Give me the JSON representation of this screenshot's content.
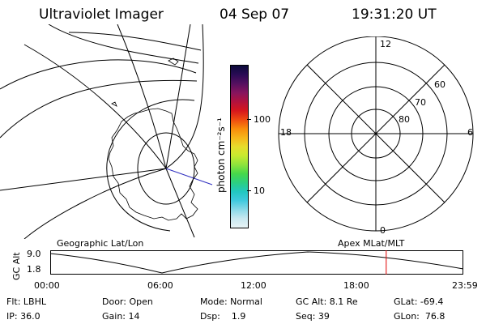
{
  "header": {
    "instrument": "Ultraviolet Imager",
    "date": "04 Sep 07",
    "time": "19:31:20 UT"
  },
  "colorbar": {
    "label": "photon cm⁻²s⁻¹",
    "ticks": [
      "100",
      "10"
    ],
    "scale": "log",
    "colors": [
      "#0b0b3a",
      "#2a0b55",
      "#55105f",
      "#86145e",
      "#b1123e",
      "#d6161d",
      "#ee4a11",
      "#f88c0b",
      "#f6b51a",
      "#e7dc2c",
      "#c8ea2f",
      "#8fe33c",
      "#47d84a",
      "#2ccf80",
      "#22c7c0",
      "#40c9de",
      "#8ad9e8",
      "#c9e8f0",
      "#e8f3f6"
    ]
  },
  "left_map": {
    "projection": "Geographic Lat/Lon"
  },
  "right_polar": {
    "system": "Apex MLat/MLT",
    "mlt_labels": [
      "12",
      "18",
      "6",
      "0"
    ],
    "mlat_labels": [
      "60",
      "70",
      "80"
    ]
  },
  "timeline": {
    "axis_label": "GC Alt",
    "y_ticks": [
      "9.0",
      "1.8"
    ],
    "x_ticks": [
      "00:00",
      "06:00",
      "12:00",
      "18:00",
      "23:59"
    ],
    "marker_color": "#e00000",
    "marker_time_hours": 19.52
  },
  "info": {
    "filter": "Flt: LBHL",
    "door": "Door: Open",
    "mode": "Mode: Normal",
    "gc_alt": "GC Alt: 8.1 Re",
    "glat": "GLat: -69.4",
    "ip": "IP: 36.0",
    "gain": "Gain: 14",
    "dsp": "Dsp:    1.9",
    "seq": "Seq: 39",
    "glon": "GLon:  76.8"
  }
}
